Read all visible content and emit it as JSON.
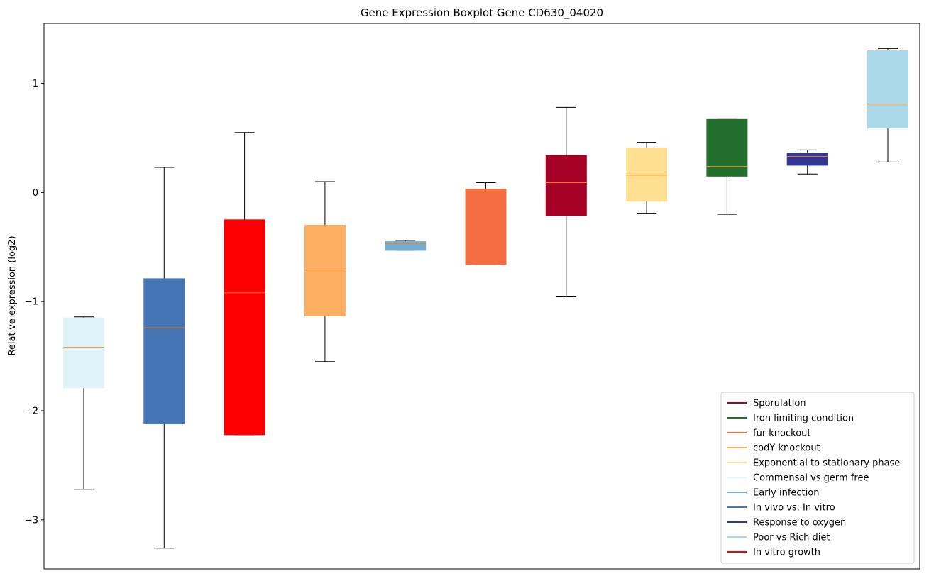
{
  "chart_data": {
    "type": "box",
    "title": "Gene Expression Boxplot Gene CD630_04020",
    "xlabel": "",
    "ylabel": "Relative expression (log2)",
    "ylim": [
      -3.45,
      1.55
    ],
    "yticks": [
      -3,
      -2,
      -1,
      0,
      1
    ],
    "ytick_labels": [
      "−3",
      "−2",
      "−1",
      "0",
      "1"
    ],
    "median_color": "#ff7f0e",
    "boxes": [
      {
        "color": "#e0f3f8",
        "whisker_low": -2.72,
        "q1": -1.79,
        "median": -1.42,
        "q3": -1.15,
        "whisker_high": -1.14
      },
      {
        "color": "#4575b4",
        "whisker_low": -3.26,
        "q1": -2.12,
        "median": -1.24,
        "q3": -0.79,
        "whisker_high": 0.23
      },
      {
        "color": "#ff0000",
        "whisker_low": -2.22,
        "q1": -2.22,
        "median": -0.92,
        "q3": -0.25,
        "whisker_high": 0.55
      },
      {
        "color": "#fdae61",
        "whisker_low": -1.55,
        "q1": -1.13,
        "median": -0.71,
        "q3": -0.3,
        "whisker_high": 0.1
      },
      {
        "color": "#74add1",
        "whisker_low": -0.53,
        "q1": -0.53,
        "median": -0.47,
        "q3": -0.45,
        "whisker_high": -0.44
      },
      {
        "color": "#f46d43",
        "whisker_low": -0.66,
        "q1": -0.66,
        "median": 0.02,
        "q3": 0.03,
        "whisker_high": 0.09
      },
      {
        "color": "#a50026",
        "whisker_low": -0.95,
        "q1": -0.21,
        "median": 0.09,
        "q3": 0.34,
        "whisker_high": 0.78
      },
      {
        "color": "#fee090",
        "whisker_low": -0.19,
        "q1": -0.08,
        "median": 0.16,
        "q3": 0.41,
        "whisker_high": 0.46
      },
      {
        "color": "#226e2d",
        "whisker_low": -0.2,
        "q1": 0.15,
        "median": 0.24,
        "q3": 0.67,
        "whisker_high": 0.67
      },
      {
        "color": "#313695",
        "whisker_low": 0.17,
        "q1": 0.25,
        "median": 0.33,
        "q3": 0.36,
        "whisker_high": 0.39
      },
      {
        "color": "#abd9e9",
        "whisker_low": 0.28,
        "q1": 0.59,
        "median": 0.81,
        "q3": 1.3,
        "whisker_high": 1.32
      }
    ],
    "legend": {
      "placement": "lower-right",
      "entries": [
        {
          "label": "Sporulation",
          "color": "#a50026"
        },
        {
          "label": "Iron limiting condition",
          "color": "#226e2d"
        },
        {
          "label": "fur knockout",
          "color": "#f46d43"
        },
        {
          "label": "codY knockout",
          "color": "#fdae61"
        },
        {
          "label": "Exponential to stationary phase",
          "color": "#fee090"
        },
        {
          "label": "Commensal vs germ free",
          "color": "#e0f3f8"
        },
        {
          "label": "Early infection",
          "color": "#74add1"
        },
        {
          "label": "In vivo vs. In vitro",
          "color": "#4575b4"
        },
        {
          "label": "Response to oxygen",
          "color": "#313695"
        },
        {
          "label": "Poor vs Rich diet",
          "color": "#abd9e9"
        },
        {
          "label": "In vitro growth",
          "color": "#ff0000"
        }
      ]
    }
  }
}
